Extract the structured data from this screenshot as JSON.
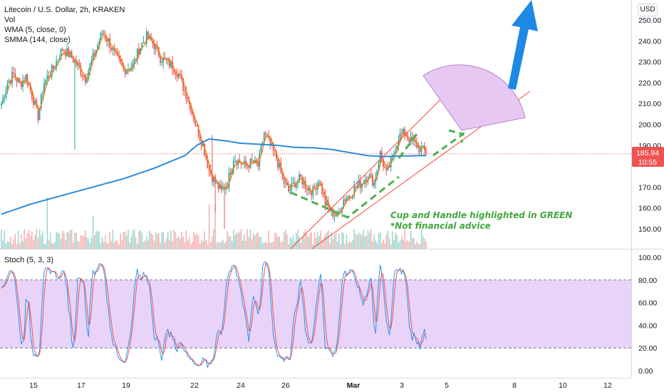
{
  "legend": {
    "symbol": "Litecoin / U.S. Dollar, 2h, KRAKEN",
    "vol": "Vol",
    "wma": "WMA (5, close, 0)",
    "smma": "SMMA (144, close)"
  },
  "currency_button": "USD",
  "last_price": "185.94",
  "countdown": "10:55",
  "annotation": {
    "line1": "Cup and Handle highlighted in GREEN",
    "line2": "*Not financial advice"
  },
  "stoch_legend": "Stoch (5, 3, 3)",
  "colors": {
    "up": "#26a69a",
    "down": "#ef5350",
    "wma": "#f57c00",
    "smma": "#2e8bd8",
    "stoch_k": "#2196f3",
    "stoch_d": "#ef5350",
    "stoch_band": "#e1c4f7",
    "cup_handle": "#4caf50",
    "channel": "#f44336",
    "target_fill": "#e6c8f2",
    "arrow": "#1e88e5"
  },
  "chart_data": [
    {
      "type": "candlestick",
      "title": "Litecoin / U.S. Dollar, 2h, KRAKEN",
      "x_ticks": [
        "15",
        "17",
        "19",
        "22",
        "24",
        "26",
        "Mar",
        "3",
        "5",
        "8",
        "10",
        "12"
      ],
      "y_ticks": [
        "250.00",
        "240.00",
        "230.00",
        "220.00",
        "210.00",
        "200.00",
        "190.00",
        "170.00",
        "160.00",
        "150.00"
      ],
      "ylim": [
        142,
        260
      ],
      "last_price": 185.94,
      "price_path": [
        [
          0,
          210
        ],
        [
          4,
          220
        ],
        [
          8,
          224
        ],
        [
          12,
          219
        ],
        [
          16,
          223
        ],
        [
          20,
          214
        ],
        [
          24,
          204
        ],
        [
          28,
          220
        ],
        [
          34,
          227
        ],
        [
          40,
          236
        ],
        [
          45,
          233
        ],
        [
          50,
          228
        ],
        [
          55,
          222
        ],
        [
          60,
          232
        ],
        [
          66,
          244
        ],
        [
          70,
          240
        ],
        [
          75,
          232
        ],
        [
          80,
          226
        ],
        [
          86,
          228
        ],
        [
          90,
          236
        ],
        [
          95,
          242
        ],
        [
          100,
          238
        ],
        [
          104,
          232
        ],
        [
          108,
          230
        ],
        [
          112,
          228
        ],
        [
          116,
          224
        ],
        [
          120,
          216
        ],
        [
          124,
          208
        ],
        [
          128,
          198
        ],
        [
          132,
          190
        ],
        [
          136,
          178
        ],
        [
          140,
          172
        ],
        [
          144,
          168
        ],
        [
          148,
          172
        ],
        [
          152,
          184
        ],
        [
          156,
          182
        ],
        [
          160,
          180
        ],
        [
          164,
          182
        ],
        [
          168,
          180
        ],
        [
          172,
          196
        ],
        [
          176,
          190
        ],
        [
          180,
          184
        ],
        [
          184,
          174
        ],
        [
          188,
          168
        ],
        [
          192,
          172
        ],
        [
          196,
          174
        ],
        [
          200,
          170
        ],
        [
          204,
          168
        ],
        [
          208,
          174
        ],
        [
          212,
          162
        ],
        [
          216,
          158
        ],
        [
          220,
          156
        ],
        [
          224,
          164
        ],
        [
          228,
          166
        ],
        [
          232,
          170
        ],
        [
          236,
          172
        ],
        [
          240,
          176
        ],
        [
          244,
          172
        ],
        [
          248,
          186
        ],
        [
          252,
          176
        ],
        [
          256,
          184
        ],
        [
          260,
          194
        ],
        [
          264,
          196
        ],
        [
          268,
          192
        ],
        [
          272,
          190
        ],
        [
          275,
          188
        ],
        [
          278,
          186.5
        ]
      ],
      "smma_path": [
        [
          0,
          157
        ],
        [
          20,
          162
        ],
        [
          40,
          166
        ],
        [
          60,
          170
        ],
        [
          80,
          174
        ],
        [
          100,
          179
        ],
        [
          120,
          185
        ],
        [
          128,
          190
        ],
        [
          136,
          193
        ],
        [
          140,
          192.7
        ],
        [
          148,
          192
        ],
        [
          156,
          191
        ],
        [
          168,
          190.5
        ],
        [
          180,
          190
        ],
        [
          192,
          189
        ],
        [
          204,
          188.8
        ],
        [
          216,
          188
        ],
        [
          228,
          186.5
        ],
        [
          240,
          185
        ],
        [
          250,
          184.6
        ],
        [
          260,
          184.8
        ],
        [
          272,
          185
        ],
        [
          278,
          185
        ]
      ],
      "series": [
        {
          "name": "WMA (5, close, 0)"
        },
        {
          "name": "SMMA (144, close)"
        }
      ]
    },
    {
      "type": "line",
      "title": "Stoch (5, 3, 3)",
      "y_ticks": [
        "100.00",
        "80.00",
        "60.00",
        "40.00",
        "20.00",
        "0.00"
      ],
      "ylim": [
        0,
        100
      ],
      "band": [
        20,
        80
      ]
    }
  ]
}
